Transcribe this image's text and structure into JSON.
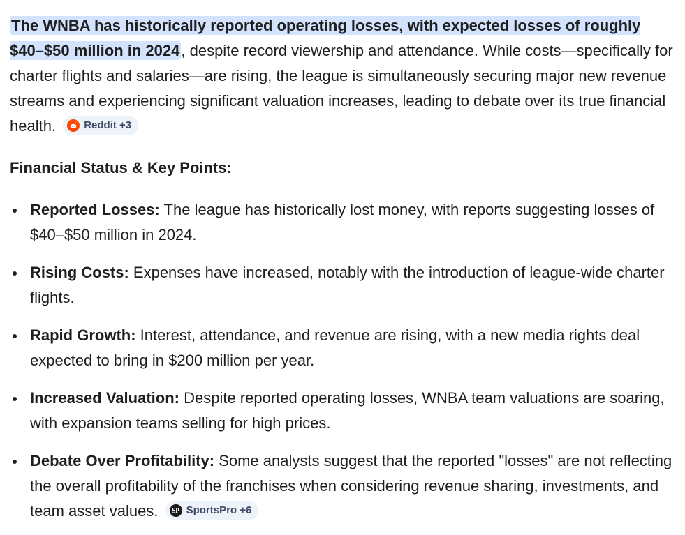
{
  "intro": {
    "highlight": "The WNBA has historically reported operating losses, with expected losses of roughly $40–$50 million in 2024",
    "rest": ", despite record viewership and attendance. While costs—specifically for charter flights and salaries—are rising, the league is simultaneously securing major new revenue streams and experiencing significant valuation increases, leading to debate over its true financial health.",
    "source_chip": {
      "icon": "reddit-icon",
      "label": "Reddit +3"
    }
  },
  "section": {
    "heading": "Financial Status & Key Points:"
  },
  "points": [
    {
      "term": "Reported Losses:",
      "text": " The league has historically lost money, with reports suggesting losses of $40–$50 million in 2024."
    },
    {
      "term": "Rising Costs:",
      "text": " Expenses have increased, notably with the introduction of league-wide charter flights."
    },
    {
      "term": "Rapid Growth:",
      "text": " Interest, attendance, and revenue are rising, with a new media rights deal expected to bring in $200 million per year."
    },
    {
      "term": "Increased Valuation:",
      "text": " Despite reported operating losses, WNBA team valuations are soaring, with expansion teams selling for high prices."
    },
    {
      "term": "Debate Over Profitability:",
      "text": " Some analysts suggest that the reported \"losses\" are not reflecting the overall profitability of the franchises when considering revenue sharing, investments, and team asset values."
    }
  ],
  "last_chip": {
    "icon": "sportspro-icon",
    "icon_text": "SP",
    "label": "SportsPro +6"
  },
  "reddit_icon_text": "●"
}
